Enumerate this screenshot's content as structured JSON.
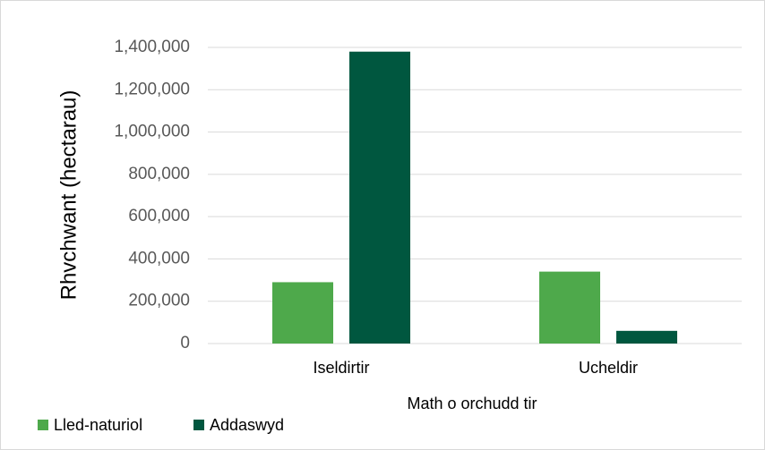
{
  "chart_data": {
    "type": "bar",
    "categories": [
      "Iseldirtir",
      "Ucheldir"
    ],
    "series": [
      {
        "name": "Lled-naturiol",
        "color": "#4ea94b",
        "values": [
          290000,
          340000
        ]
      },
      {
        "name": "Addaswyd",
        "color": "#00573f",
        "values": [
          1380000,
          60000
        ]
      }
    ],
    "x_label": "Math o orchudd tir",
    "y_label": "Rhvchwant (hectarau)",
    "ylim": [
      0,
      1400000
    ],
    "yticks": [
      0,
      {
        "value": 200000,
        "label": "200,000"
      },
      {
        "value": 400000,
        "label": "400,000"
      },
      {
        "value": 600000,
        "label": "600,000"
      },
      {
        "value": 800000,
        "label": "800,000"
      },
      {
        "value": 1000000,
        "label": "1,000,000"
      },
      {
        "value": 1200000,
        "label": "1,200,000"
      },
      {
        "value": 1400000,
        "label": "1,400,000"
      }
    ],
    "grid": true,
    "legend": "bottom-left"
  }
}
